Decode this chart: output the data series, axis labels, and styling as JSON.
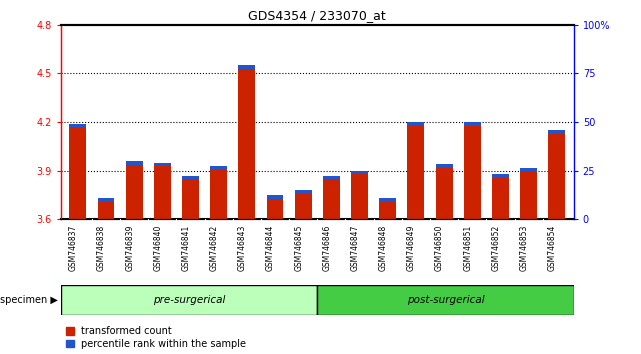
{
  "title": "GDS4354 / 233070_at",
  "samples": [
    "GSM746837",
    "GSM746838",
    "GSM746839",
    "GSM746840",
    "GSM746841",
    "GSM746842",
    "GSM746843",
    "GSM746844",
    "GSM746845",
    "GSM746846",
    "GSM746847",
    "GSM746848",
    "GSM746849",
    "GSM746850",
    "GSM746851",
    "GSM746852",
    "GSM746853",
    "GSM746854"
  ],
  "red_values": [
    4.19,
    3.73,
    3.96,
    3.95,
    3.87,
    3.93,
    4.55,
    3.75,
    3.78,
    3.87,
    3.9,
    3.73,
    4.2,
    3.94,
    4.2,
    3.88,
    3.92,
    4.15
  ],
  "pre_surgical_count": 9,
  "ymin": 3.6,
  "ymax": 4.8,
  "y_ticks": [
    3.6,
    3.9,
    4.2,
    4.5,
    4.8
  ],
  "right_y_ticks": [
    0,
    25,
    50,
    75,
    100
  ],
  "bar_color_red": "#cc2200",
  "bar_color_blue": "#2255cc",
  "pre_surgical_color": "#bbffbb",
  "post_surgical_color": "#44cc44",
  "sample_bg_color": "#cccccc",
  "legend_red": "transformed count",
  "legend_blue": "percentile rank within the sample"
}
